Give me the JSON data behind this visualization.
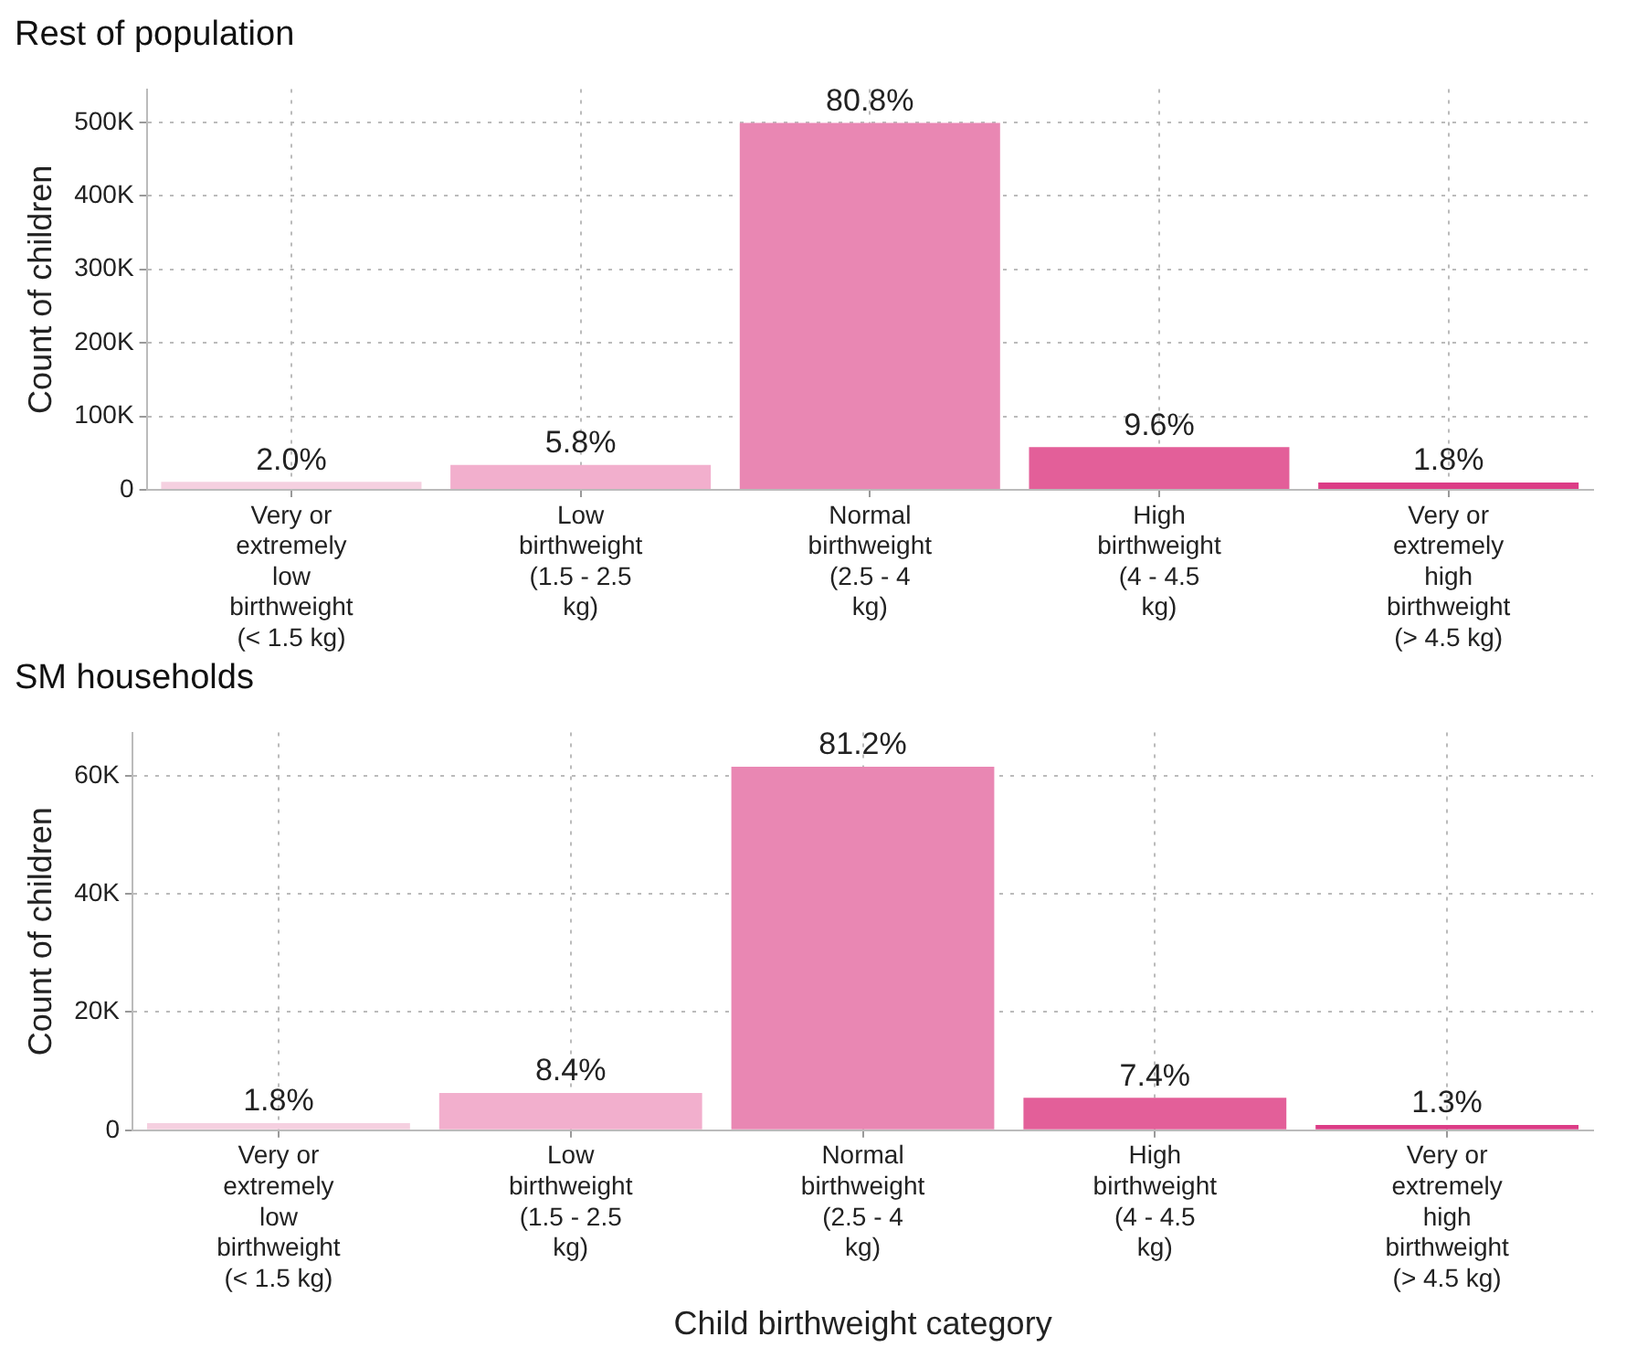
{
  "chart_data": [
    {
      "type": "bar",
      "title": "Rest of population",
      "ylabel": "Count of children",
      "categories": [
        "Very or\nextremely\nlow\nbirthweight\n(< 1.5 kg)",
        "Low\nbirthweight\n(1.5 - 2.5\nkg)",
        "Normal\nbirthweight\n(2.5 - 4\nkg)",
        "High\nbirthweight\n(4 - 4.5\nkg)",
        "Very or\nextremely\nhigh\nbirthweight\n(> 4.5 kg)"
      ],
      "values": [
        11000,
        34000,
        499000,
        58000,
        10000
      ],
      "colors": [
        "#f5d0e0",
        "#f2afcd",
        "#e987b3",
        "#e35f99",
        "#dc3c86"
      ],
      "annotations": [
        {
          "text": "2.0%",
          "x": "Very or\nextremely\nlow\nbirthweight\n(< 1.5 kg)",
          "y": 11000
        },
        {
          "text": "5.8%",
          "x": "Low\nbirthweight\n(1.5 - 2.5\nkg)",
          "y": 34000
        },
        {
          "text": "80.8%",
          "x": "Normal\nbirthweight\n(2.5 - 4\nkg)",
          "y": 499000
        },
        {
          "text": "9.6%",
          "x": "High\nbirthweight\n(4 - 4.5\nkg)",
          "y": 58000
        },
        {
          "text": "1.8%",
          "x": "Very or\nextremely\nhigh\nbirthweight\n(> 4.5 kg)",
          "y": 10000
        }
      ],
      "ylim": [
        0,
        545000
      ],
      "yticks": [
        {
          "value": 0,
          "label": "0"
        },
        {
          "value": 100000,
          "label": "100K"
        },
        {
          "value": 200000,
          "label": "200K"
        },
        {
          "value": 300000,
          "label": "300K"
        },
        {
          "value": 400000,
          "label": "400K"
        },
        {
          "value": 500000,
          "label": "500K"
        }
      ],
      "grid": true,
      "legend": false
    },
    {
      "type": "bar",
      "title": "SM households",
      "ylabel": "Count of children",
      "xlabel": "Child birthweight category",
      "categories": [
        "Very or\nextremely\nlow\nbirthweight\n(< 1.5 kg)",
        "Low\nbirthweight\n(1.5 - 2.5\nkg)",
        "Normal\nbirthweight\n(2.5 - 4\nkg)",
        "High\nbirthweight\n(4 - 4.5\nkg)",
        "Very or\nextremely\nhigh\nbirthweight\n(> 4.5 kg)"
      ],
      "values": [
        1200,
        6300,
        61500,
        5500,
        900
      ],
      "colors": [
        "#f5d0e0",
        "#f2afcd",
        "#e987b3",
        "#e35f99",
        "#dc3c86"
      ],
      "annotations": [
        {
          "text": "1.8%",
          "x": "Very or\nextremely\nlow\nbirthweight\n(< 1.5 kg)",
          "y": 1200
        },
        {
          "text": "8.4%",
          "x": "Low\nbirthweight\n(1.5 - 2.5\nkg)",
          "y": 6300
        },
        {
          "text": "81.2%",
          "x": "Normal\nbirthweight\n(2.5 - 4\nkg)",
          "y": 61500
        },
        {
          "text": "7.4%",
          "x": "High\nbirthweight\n(4 - 4.5\nkg)",
          "y": 5500
        },
        {
          "text": "1.3%",
          "x": "Very or\nextremely\nhigh\nbirthweight\n(> 4.5 kg)",
          "y": 900
        }
      ],
      "ylim": [
        0,
        67300
      ],
      "yticks": [
        {
          "value": 0,
          "label": "0"
        },
        {
          "value": 20000,
          "label": "20K"
        },
        {
          "value": 40000,
          "label": "40K"
        },
        {
          "value": 60000,
          "label": "60K"
        }
      ],
      "grid": true,
      "legend": false
    }
  ]
}
